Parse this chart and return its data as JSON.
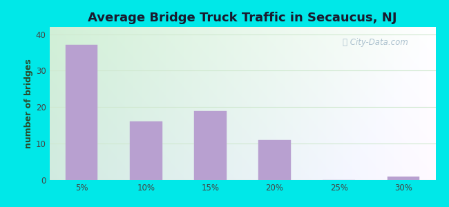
{
  "title": "Average Bridge Truck Traffic in Secaucus, NJ",
  "categories": [
    "5%",
    "10%",
    "15%",
    "20%",
    "25%",
    "30%"
  ],
  "values": [
    37,
    16,
    19,
    11,
    0,
    1
  ],
  "bar_color": "#b8a0d0",
  "bar_edgecolor": "#b8a0d0",
  "ylabel": "number of bridges",
  "yticks": [
    0,
    10,
    20,
    30,
    40
  ],
  "ylim": [
    0,
    42
  ],
  "outer_bg": "#00e8e8",
  "title_fontsize": 13,
  "axis_label_fontsize": 9,
  "tick_fontsize": 8.5,
  "watermark_text": "City-Data.com",
  "watermark_color": "#a0b8c8",
  "grid_color": "#d0e8d0",
  "title_color": "#1a1a2e",
  "ylabel_color": "#2a4a2a"
}
